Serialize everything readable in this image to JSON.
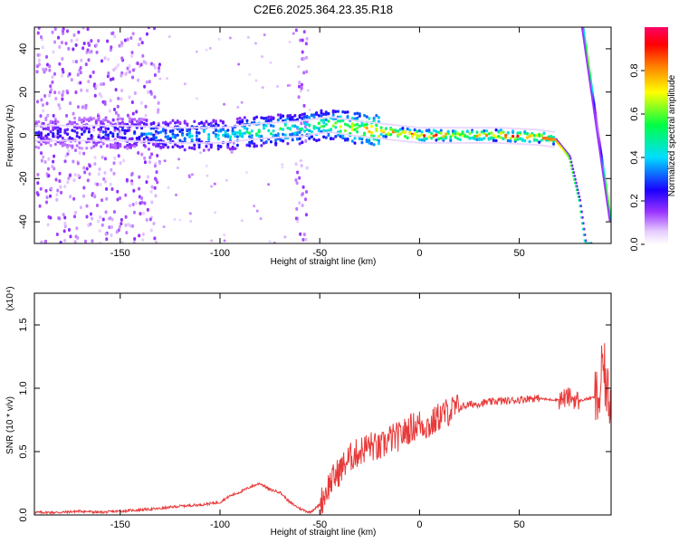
{
  "title": "C2E6.2025.364.23.35.R18",
  "colors": {
    "snr_line": "#e83a3a",
    "background": "#ffffff",
    "colorbar": [
      "#ffffff",
      "#e0c8ff",
      "#8000ff",
      "#0000ff",
      "#00ffff",
      "#00ff00",
      "#ffff00",
      "#ff8000",
      "#ff0000",
      "#ff0066"
    ]
  },
  "chart_data": [
    {
      "type": "heatmap",
      "name": "spectrogram",
      "xlabel": "Height of straight line (km)",
      "ylabel": "Frequency (Hz)",
      "xlim": [
        -193,
        96
      ],
      "ylim": [
        -50,
        50
      ],
      "xticks": [
        -150,
        -100,
        -50,
        0,
        50
      ],
      "yticks": [
        -40,
        -20,
        0,
        20,
        40
      ],
      "colorbar_label": "Normalized spectral amplitude",
      "colorbar_range": [
        0,
        1
      ],
      "colorbar_ticks": [
        "0.0",
        "0.2",
        "0.4",
        "0.6",
        "0.8"
      ],
      "ridge": [
        {
          "x": -190,
          "f": 1,
          "amp": 0.25
        },
        {
          "x": -150,
          "f": 1,
          "amp": 0.3
        },
        {
          "x": -120,
          "f": 0,
          "amp": 0.4
        },
        {
          "x": -100,
          "f": 0,
          "amp": 0.45
        },
        {
          "x": -80,
          "f": 2,
          "amp": 0.55
        },
        {
          "x": -60,
          "f": 3,
          "amp": 0.55
        },
        {
          "x": -45,
          "f": 5,
          "amp": 0.6
        },
        {
          "x": -30,
          "f": 3,
          "amp": 0.75
        },
        {
          "x": -10,
          "f": 1,
          "amp": 0.9
        },
        {
          "x": 0,
          "f": 0,
          "amp": 0.95
        },
        {
          "x": 20,
          "f": 0,
          "amp": 0.8
        },
        {
          "x": 40,
          "f": 0,
          "amp": 0.9
        },
        {
          "x": 60,
          "f": -1,
          "amp": 0.85
        },
        {
          "x": 68,
          "f": -2,
          "amp": 0.8
        },
        {
          "x": 75,
          "f": -10,
          "amp": 0.6
        },
        {
          "x": 80,
          "f": -30,
          "amp": 0.5
        },
        {
          "x": 83,
          "f": -50,
          "amp": 0.45
        }
      ],
      "secondary_ridge": [
        {
          "x": 82,
          "f": 50
        },
        {
          "x": 96,
          "f": -40
        }
      ]
    },
    {
      "type": "line",
      "name": "snr",
      "xlabel": "Height of straight line (km)",
      "ylabel": "SNR (10 * v/v)",
      "scale_label": "(x10⁴)",
      "xlim": [
        -193,
        96
      ],
      "ylim": [
        0,
        1.75
      ],
      "xticks": [
        -150,
        -100,
        -50,
        0,
        50
      ],
      "yticks": [
        "0.0",
        "0.5",
        "1.0",
        "1.5"
      ],
      "series": [
        {
          "x": [
            -193,
            -180,
            -170,
            -160,
            -150,
            -140,
            -130,
            -120,
            -110,
            -100,
            -95,
            -90,
            -85,
            -80,
            -75,
            -70,
            -65,
            -60,
            -55,
            -50,
            -45,
            -40,
            -35,
            -30,
            -25,
            -20,
            -15,
            -10,
            -5,
            0,
            5,
            10,
            15,
            20,
            25,
            30,
            35,
            40,
            45,
            50,
            55,
            60,
            65,
            70,
            75,
            80,
            85,
            88,
            90,
            92,
            94,
            96
          ],
          "y": [
            0.02,
            0.02,
            0.03,
            0.02,
            0.03,
            0.04,
            0.05,
            0.07,
            0.08,
            0.1,
            0.15,
            0.18,
            0.22,
            0.25,
            0.2,
            0.18,
            0.1,
            0.05,
            0.02,
            0.08,
            0.25,
            0.35,
            0.45,
            0.5,
            0.55,
            0.52,
            0.6,
            0.62,
            0.68,
            0.72,
            0.7,
            0.78,
            0.82,
            0.85,
            0.87,
            0.88,
            0.89,
            0.9,
            0.9,
            0.91,
            0.92,
            0.92,
            0.91,
            0.91,
            0.93,
            0.9,
            0.92,
            0.93,
            0.9,
            1.2,
            0.95,
            0.9
          ]
        }
      ]
    }
  ]
}
